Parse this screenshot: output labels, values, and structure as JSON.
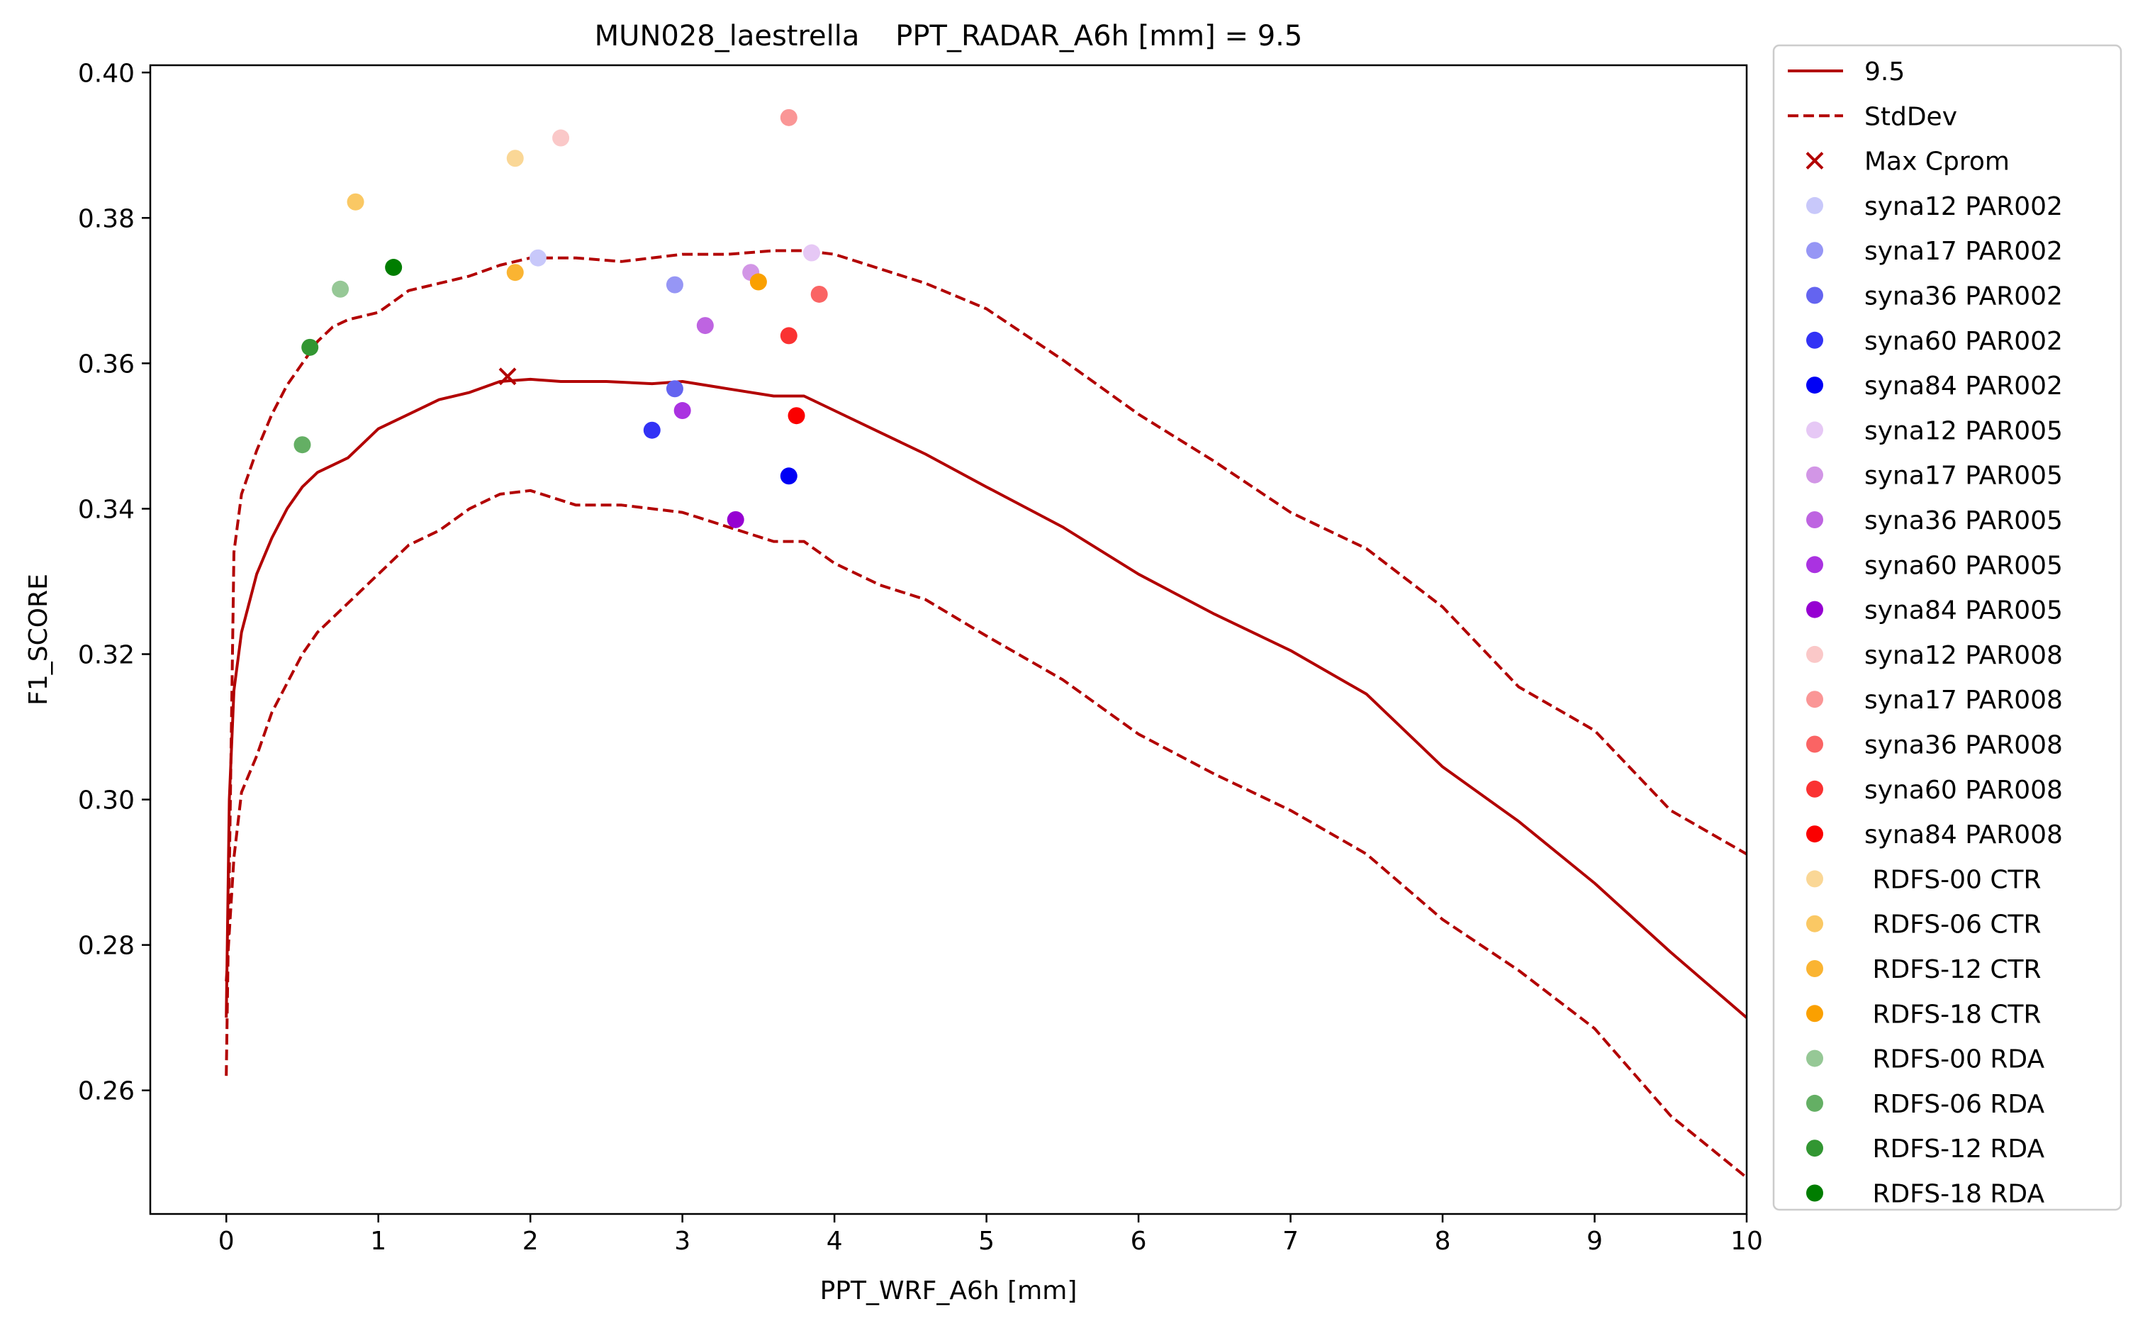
{
  "chart_data": {
    "type": "line",
    "title": "MUN028_laestrella    PPT_RADAR_A6h [mm] = 9.5",
    "xlabel": "PPT_WRF_A6h [mm]",
    "ylabel": "F1_SCORE",
    "xlim": [
      -0.5,
      10
    ],
    "ylim": [
      0.243,
      0.401
    ],
    "xticks": [
      0,
      1,
      2,
      3,
      4,
      5,
      6,
      7,
      8,
      9,
      10
    ],
    "yticks": [
      0.26,
      0.28,
      0.3,
      0.32,
      0.34,
      0.36,
      0.38,
      0.4
    ],
    "xtick_labels": [
      "0",
      "1",
      "2",
      "3",
      "4",
      "5",
      "6",
      "7",
      "8",
      "9",
      "10"
    ],
    "ytick_labels": [
      "0.26",
      "0.28",
      "0.30",
      "0.32",
      "0.34",
      "0.36",
      "0.38",
      "0.40"
    ],
    "grid": false,
    "legend_position": "outside-right",
    "lines": [
      {
        "name": "9.5",
        "color": "#b20000",
        "style": "solid",
        "points": [
          [
            0,
            0.27
          ],
          [
            0.02,
            0.3
          ],
          [
            0.05,
            0.315
          ],
          [
            0.1,
            0.323
          ],
          [
            0.2,
            0.331
          ],
          [
            0.3,
            0.336
          ],
          [
            0.4,
            0.34
          ],
          [
            0.5,
            0.343
          ],
          [
            0.6,
            0.345
          ],
          [
            0.7,
            0.346
          ],
          [
            0.8,
            0.347
          ],
          [
            0.9,
            0.349
          ],
          [
            1.0,
            0.351
          ],
          [
            1.2,
            0.353
          ],
          [
            1.4,
            0.355
          ],
          [
            1.6,
            0.356
          ],
          [
            1.8,
            0.3575
          ],
          [
            2.0,
            0.3578
          ],
          [
            2.2,
            0.3575
          ],
          [
            2.5,
            0.3575
          ],
          [
            2.8,
            0.3572
          ],
          [
            3.0,
            0.3575
          ],
          [
            3.3,
            0.3565
          ],
          [
            3.6,
            0.3555
          ],
          [
            3.8,
            0.3555
          ],
          [
            4.0,
            0.3535
          ],
          [
            4.3,
            0.3505
          ],
          [
            4.6,
            0.3475
          ],
          [
            5.0,
            0.343
          ],
          [
            5.5,
            0.3375
          ],
          [
            6.0,
            0.331
          ],
          [
            6.5,
            0.3255
          ],
          [
            7.0,
            0.3205
          ],
          [
            7.5,
            0.3145
          ],
          [
            8.0,
            0.3045
          ],
          [
            8.5,
            0.297
          ],
          [
            9.0,
            0.2885
          ],
          [
            9.5,
            0.279
          ],
          [
            10.0,
            0.27
          ]
        ]
      },
      {
        "name": "StdDev",
        "color": "#b20000",
        "style": "dashed",
        "points": [
          [
            0,
            0.262
          ],
          [
            0.02,
            0.29
          ],
          [
            0.05,
            0.334
          ],
          [
            0.1,
            0.342
          ],
          [
            0.2,
            0.348
          ],
          [
            0.3,
            0.353
          ],
          [
            0.4,
            0.357
          ],
          [
            0.5,
            0.36
          ],
          [
            0.6,
            0.363
          ],
          [
            0.7,
            0.365
          ],
          [
            0.8,
            0.366
          ],
          [
            1.0,
            0.367
          ],
          [
            1.2,
            0.37
          ],
          [
            1.4,
            0.371
          ],
          [
            1.6,
            0.372
          ],
          [
            1.8,
            0.3735
          ],
          [
            2.0,
            0.3745
          ],
          [
            2.3,
            0.3745
          ],
          [
            2.6,
            0.374
          ],
          [
            3.0,
            0.375
          ],
          [
            3.3,
            0.375
          ],
          [
            3.6,
            0.3755
          ],
          [
            3.8,
            0.3755
          ],
          [
            4.0,
            0.375
          ],
          [
            4.3,
            0.373
          ],
          [
            4.6,
            0.371
          ],
          [
            5.0,
            0.3675
          ],
          [
            5.5,
            0.3605
          ],
          [
            6.0,
            0.353
          ],
          [
            6.5,
            0.3465
          ],
          [
            7.0,
            0.3395
          ],
          [
            7.5,
            0.3345
          ],
          [
            8.0,
            0.3265
          ],
          [
            8.5,
            0.3155
          ],
          [
            9.0,
            0.3095
          ],
          [
            9.5,
            0.2985
          ],
          [
            10.0,
            0.2925
          ]
        ]
      },
      {
        "name": "",
        "color": "#b20000",
        "style": "dashed",
        "points": [
          [
            0,
            0.275
          ],
          [
            0.05,
            0.292
          ],
          [
            0.1,
            0.301
          ],
          [
            0.2,
            0.306
          ],
          [
            0.3,
            0.312
          ],
          [
            0.4,
            0.316
          ],
          [
            0.5,
            0.32
          ],
          [
            0.6,
            0.323
          ],
          [
            0.7,
            0.325
          ],
          [
            0.8,
            0.327
          ],
          [
            1.0,
            0.331
          ],
          [
            1.2,
            0.335
          ],
          [
            1.4,
            0.337
          ],
          [
            1.6,
            0.34
          ],
          [
            1.8,
            0.342
          ],
          [
            2.0,
            0.3425
          ],
          [
            2.3,
            0.3405
          ],
          [
            2.6,
            0.3405
          ],
          [
            3.0,
            0.3395
          ],
          [
            3.3,
            0.3375
          ],
          [
            3.6,
            0.3355
          ],
          [
            3.8,
            0.3355
          ],
          [
            4.0,
            0.3325
          ],
          [
            4.3,
            0.3295
          ],
          [
            4.6,
            0.3275
          ],
          [
            5.0,
            0.3225
          ],
          [
            5.5,
            0.3165
          ],
          [
            6.0,
            0.309
          ],
          [
            6.5,
            0.3035
          ],
          [
            7.0,
            0.2985
          ],
          [
            7.5,
            0.2925
          ],
          [
            8.0,
            0.2835
          ],
          [
            8.5,
            0.2765
          ],
          [
            9.0,
            0.2685
          ],
          [
            9.5,
            0.2565
          ],
          [
            10.0,
            0.248
          ]
        ]
      }
    ],
    "max_marker": {
      "name": "Max Cprom",
      "x": 1.85,
      "y": 0.3582,
      "color": "#b20000"
    },
    "scatter": [
      {
        "name": "syna12 PAR002",
        "x": 2.05,
        "y": 0.3745,
        "color": "#c8c8fa"
      },
      {
        "name": "syna17 PAR002",
        "x": 2.95,
        "y": 0.3708,
        "color": "#9696f5"
      },
      {
        "name": "syna36 PAR002",
        "x": 2.95,
        "y": 0.3565,
        "color": "#6464f0"
      },
      {
        "name": "syna60 PAR002",
        "x": 2.8,
        "y": 0.3508,
        "color": "#3232f5"
      },
      {
        "name": "syna84 PAR002",
        "x": 3.7,
        "y": 0.3445,
        "color": "#0000f5"
      },
      {
        "name": "syna12 PAR005",
        "x": 3.85,
        "y": 0.3752,
        "color": "#e6c8f5"
      },
      {
        "name": "syna17 PAR005",
        "x": 3.45,
        "y": 0.3725,
        "color": "#d296e6"
      },
      {
        "name": "syna36 PAR005",
        "x": 3.15,
        "y": 0.3652,
        "color": "#be64e1"
      },
      {
        "name": "syna60 PAR005",
        "x": 3.0,
        "y": 0.3535,
        "color": "#aa32e1"
      },
      {
        "name": "syna84 PAR005",
        "x": 3.35,
        "y": 0.3385,
        "color": "#9600d2"
      },
      {
        "name": "syna12 PAR008",
        "x": 2.2,
        "y": 0.391,
        "color": "#fac8c8"
      },
      {
        "name": "syna17 PAR008",
        "x": 3.7,
        "y": 0.3938,
        "color": "#fa9696"
      },
      {
        "name": "syna36 PAR008",
        "x": 3.9,
        "y": 0.3695,
        "color": "#fa6464"
      },
      {
        "name": "syna60 PAR008",
        "x": 3.7,
        "y": 0.3638,
        "color": "#fa3232"
      },
      {
        "name": "syna84 PAR008",
        "x": 3.75,
        "y": 0.3528,
        "color": "#fa0000"
      },
      {
        "name": " RDFS-00 CTR",
        "x": 1.9,
        "y": 0.3882,
        "color": "#fad796"
      },
      {
        "name": " RDFS-06 CTR",
        "x": 0.85,
        "y": 0.3822,
        "color": "#fac864"
      },
      {
        "name": " RDFS-12 CTR",
        "x": 1.9,
        "y": 0.3725,
        "color": "#fab432"
      },
      {
        "name": " RDFS-18 CTR",
        "x": 3.5,
        "y": 0.3712,
        "color": "#faa000"
      },
      {
        "name": " RDFS-00 RDA",
        "x": 0.75,
        "y": 0.3702,
        "color": "#96c896"
      },
      {
        "name": " RDFS-06 RDA",
        "x": 0.5,
        "y": 0.3488,
        "color": "#64af64"
      },
      {
        "name": " RDFS-12 RDA",
        "x": 0.55,
        "y": 0.3622,
        "color": "#329632"
      },
      {
        "name": " RDFS-18 RDA",
        "x": 1.1,
        "y": 0.3732,
        "color": "#007d00"
      }
    ]
  }
}
